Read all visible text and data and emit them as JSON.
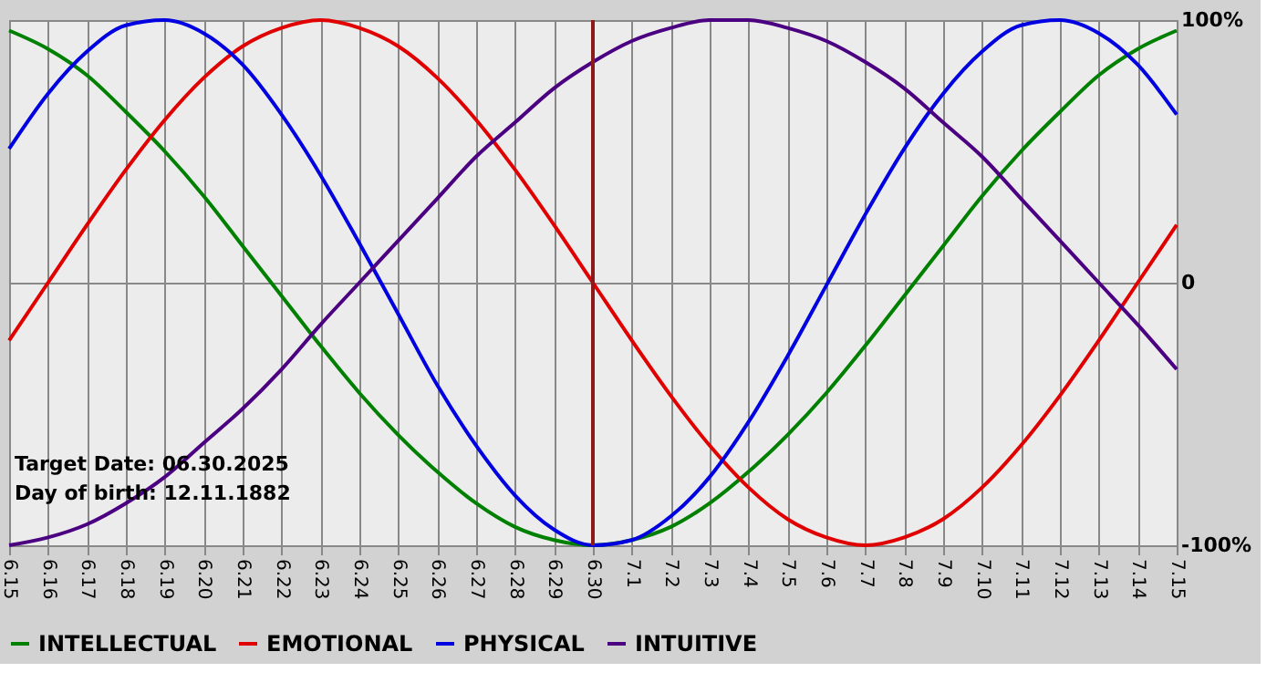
{
  "chart_data": {
    "type": "line",
    "categories": [
      "6.15",
      "6.16",
      "6.17",
      "6.18",
      "6.19",
      "6.20",
      "6.21",
      "6.22",
      "6.23",
      "6.24",
      "6.25",
      "6.26",
      "6.27",
      "6.28",
      "6.29",
      "6.30",
      "7.1",
      "7.2",
      "7.3",
      "7.4",
      "7.5",
      "7.6",
      "7.7",
      "7.8",
      "7.9",
      "7.10",
      "7.11",
      "7.12",
      "7.13",
      "7.14",
      "7.15"
    ],
    "series": [
      {
        "name": "INTELLECTUAL",
        "color": "#008000",
        "values": [
          96,
          89,
          79,
          65,
          50,
          33,
          14,
          -5,
          -24,
          -42,
          -58,
          -72,
          -84,
          -93,
          -98,
          -100,
          -98,
          -93,
          -84,
          -72,
          -58,
          -42,
          -24,
          -5,
          14,
          33,
          50,
          65,
          79,
          89,
          96
        ]
      },
      {
        "name": "EMOTIONAL",
        "color": "#e00000",
        "values": [
          -22,
          0,
          22,
          43,
          62,
          78,
          90,
          97,
          100,
          97,
          90,
          78,
          62,
          43,
          22,
          0,
          -22,
          -43,
          -62,
          -78,
          -90,
          -97,
          -100,
          -97,
          -90,
          -78,
          -62,
          -43,
          -22,
          0,
          22
        ]
      },
      {
        "name": "PHYSICAL",
        "color": "#0000e0",
        "values": [
          51,
          72,
          88,
          98,
          100,
          95,
          83,
          64,
          41,
          15,
          -12,
          -39,
          -62,
          -81,
          -94,
          -100,
          -98,
          -89,
          -74,
          -53,
          -28,
          -1,
          26,
          51,
          72,
          88,
          98,
          100,
          95,
          83,
          64
        ]
      },
      {
        "name": "INTUITIVE",
        "color": "#4b0082",
        "values": [
          -100,
          -97,
          -92,
          -84,
          -74,
          -61,
          -48,
          -33,
          -16,
          0,
          16,
          32,
          48,
          61,
          74,
          84,
          92,
          97,
          100,
          100,
          97,
          92,
          84,
          74,
          61,
          48,
          32,
          16,
          0,
          -16,
          -33
        ]
      }
    ],
    "ylim": [
      -100,
      100
    ],
    "yticks": [
      {
        "value": 100,
        "label": "100%"
      },
      0,
      {
        "value": -100,
        "label": "-100%"
      }
    ],
    "ref_lines": [
      {
        "axis": "x",
        "value": "6.30",
        "color": "#8b1a1a"
      }
    ],
    "annotations": [
      "Target Date: 06.30.2025",
      "Day of birth: 12.11.1882"
    ],
    "grid": true,
    "legend": "bottom",
    "marker": "none",
    "line_style": "solid"
  }
}
